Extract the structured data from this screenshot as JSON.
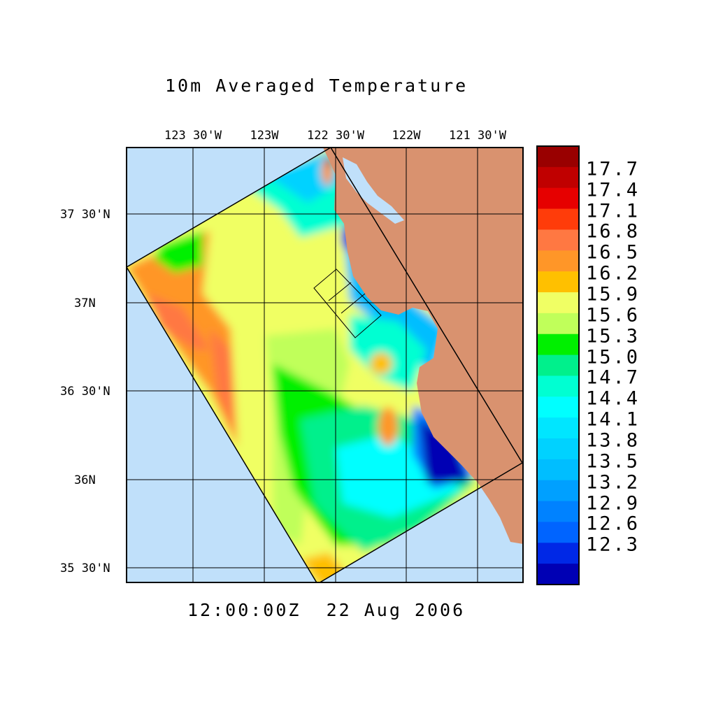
{
  "title": "10m Averaged Temperature",
  "time_label": "12:00:00Z  22 Aug 2006",
  "chart_data": {
    "type": "heatmap",
    "title": "10m Averaged Temperature",
    "lon_ticks": [
      "123 30'W",
      "123W",
      "122 30'W",
      "122W",
      "121 30'W"
    ],
    "lat_ticks": [
      "37 30'N",
      "37N",
      "36 30'N",
      "36N",
      "35 30'N"
    ],
    "colorbar": {
      "labels": [
        "17.7",
        "17.4",
        "17.1",
        "16.8",
        "16.5",
        "16.2",
        "15.9",
        "15.6",
        "15.3",
        "15.0",
        "14.7",
        "14.4",
        "14.1",
        "13.8",
        "13.5",
        "13.2",
        "12.9",
        "12.6",
        "12.3"
      ],
      "colors": [
        "#990000",
        "#c00000",
        "#e60000",
        "#ff3c0a",
        "#ff7842",
        "#ff9628",
        "#ffc000",
        "#f0ff64",
        "#c0ff5a",
        "#00f000",
        "#00f08c",
        "#00ffd2",
        "#00ffff",
        "#00e6ff",
        "#00d2ff",
        "#00beff",
        "#00a0ff",
        "#0082ff",
        "#0064ff",
        "#0028e6",
        "#0000b4"
      ]
    },
    "land_color": "#d9926f",
    "ocean_color": "#c0e0fa",
    "grid": true
  }
}
